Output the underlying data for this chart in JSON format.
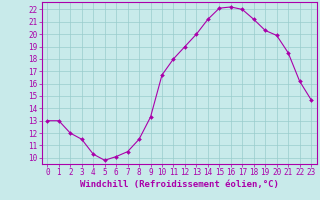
{
  "x": [
    0,
    1,
    2,
    3,
    4,
    5,
    6,
    7,
    8,
    9,
    10,
    11,
    12,
    13,
    14,
    15,
    16,
    17,
    18,
    19,
    20,
    21,
    22,
    23
  ],
  "y": [
    13,
    13,
    12,
    11.5,
    10.3,
    9.8,
    10.1,
    10.5,
    11.5,
    13.3,
    16.7,
    18.0,
    19.0,
    20.0,
    21.2,
    22.1,
    22.2,
    22.0,
    21.2,
    20.3,
    19.9,
    18.5,
    16.2,
    14.7
  ],
  "line_color": "#aa00aa",
  "marker_color": "#aa00aa",
  "bg_color": "#c8eaea",
  "grid_color": "#99cccc",
  "xlim": [
    -0.5,
    23.5
  ],
  "ylim": [
    9.5,
    22.6
  ],
  "xlabel": "Windchill (Refroidissement éolien,°C)",
  "yticks": [
    10,
    11,
    12,
    13,
    14,
    15,
    16,
    17,
    18,
    19,
    20,
    21,
    22
  ],
  "xticks": [
    0,
    1,
    2,
    3,
    4,
    5,
    6,
    7,
    8,
    9,
    10,
    11,
    12,
    13,
    14,
    15,
    16,
    17,
    18,
    19,
    20,
    21,
    22,
    23
  ],
  "tick_color": "#aa00aa",
  "axis_color": "#aa00aa",
  "label_fontsize": 6.5,
  "tick_fontsize": 5.5
}
